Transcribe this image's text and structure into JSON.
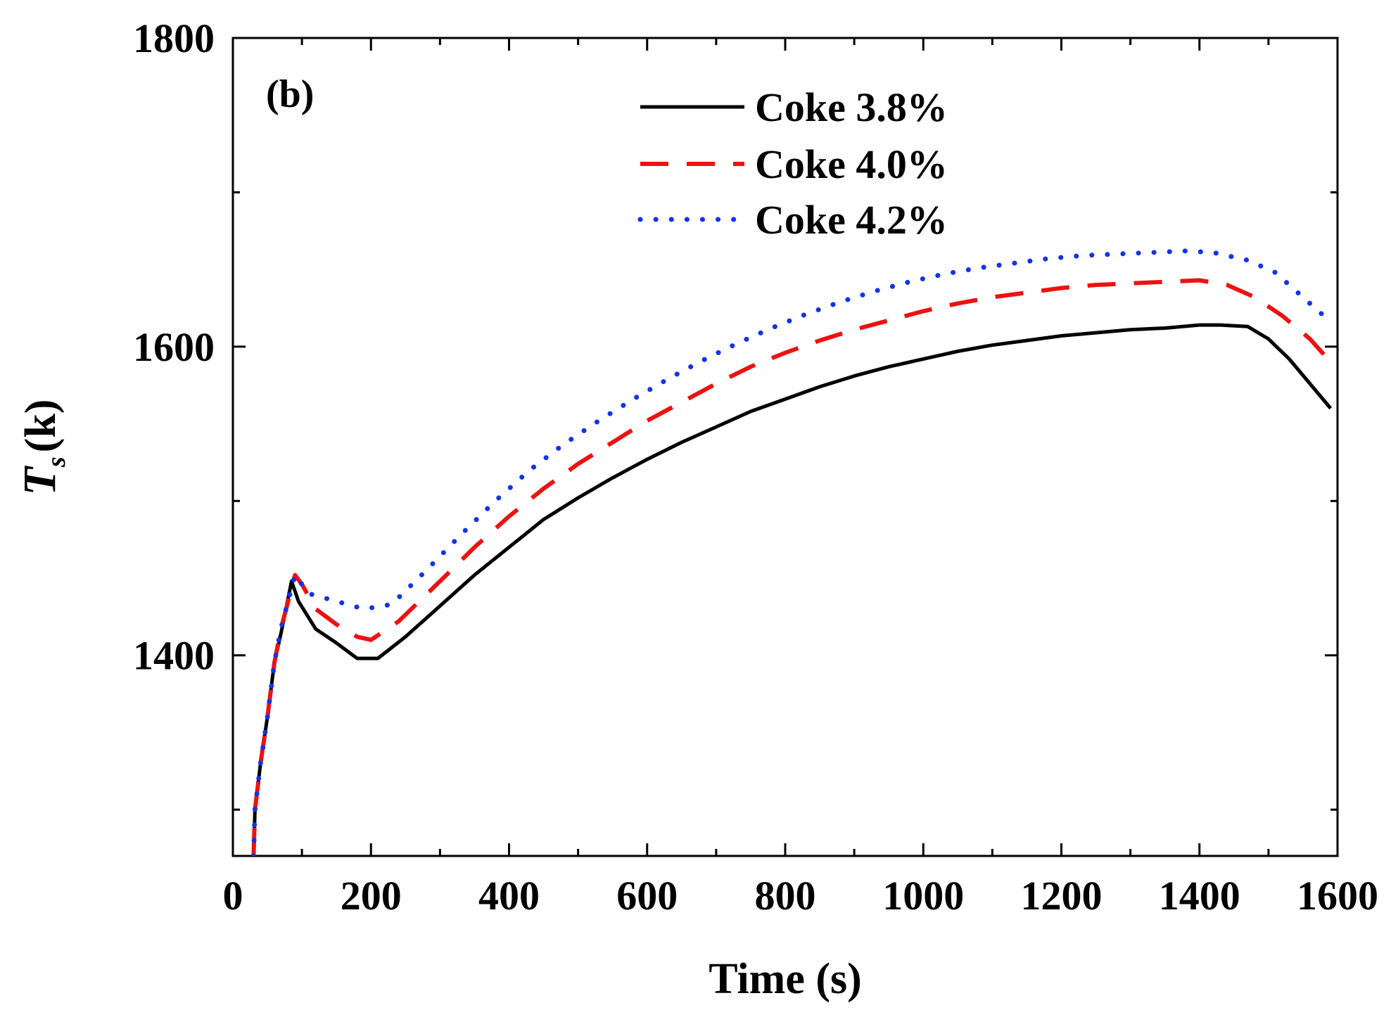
{
  "chart_data": {
    "type": "line",
    "panel_label": "(b)",
    "xlabel": "Time (s)",
    "ylabel_main": "T",
    "ylabel_sub": "s",
    "ylabel_unit": "(k)",
    "xlim": [
      0,
      1600
    ],
    "ylim": [
      1270,
      1800
    ],
    "x_ticks": [
      0,
      200,
      400,
      600,
      800,
      1000,
      1200,
      1400,
      1600
    ],
    "x_tick_labels": [
      "0",
      "200",
      "400",
      "600",
      "800",
      "1000",
      "1200",
      "1400",
      "1600"
    ],
    "y_ticks": [
      1400,
      1600,
      1800
    ],
    "y_tick_labels": [
      "1400",
      "1600",
      "1800"
    ],
    "y_minor_ticks": [
      1300,
      1500,
      1700
    ],
    "legend_position": "top-center",
    "series": [
      {
        "name": "Coke 3.8%",
        "color": "#000000",
        "style": "solid",
        "points": [
          [
            30,
            1270
          ],
          [
            32,
            1300
          ],
          [
            40,
            1330
          ],
          [
            50,
            1360
          ],
          [
            60,
            1395
          ],
          [
            70,
            1415
          ],
          [
            85,
            1448
          ],
          [
            95,
            1435
          ],
          [
            120,
            1417
          ],
          [
            150,
            1408
          ],
          [
            180,
            1398
          ],
          [
            210,
            1398
          ],
          [
            250,
            1412
          ],
          [
            300,
            1432
          ],
          [
            350,
            1452
          ],
          [
            400,
            1470
          ],
          [
            450,
            1488
          ],
          [
            500,
            1502
          ],
          [
            550,
            1515
          ],
          [
            600,
            1527
          ],
          [
            650,
            1538
          ],
          [
            700,
            1548
          ],
          [
            750,
            1558
          ],
          [
            800,
            1566
          ],
          [
            850,
            1574
          ],
          [
            900,
            1581
          ],
          [
            950,
            1587
          ],
          [
            1000,
            1592
          ],
          [
            1050,
            1597
          ],
          [
            1100,
            1601
          ],
          [
            1150,
            1604
          ],
          [
            1200,
            1607
          ],
          [
            1250,
            1609
          ],
          [
            1300,
            1611
          ],
          [
            1350,
            1612
          ],
          [
            1400,
            1614
          ],
          [
            1430,
            1614
          ],
          [
            1470,
            1613
          ],
          [
            1500,
            1605
          ],
          [
            1530,
            1592
          ],
          [
            1560,
            1576
          ],
          [
            1590,
            1560
          ]
        ]
      },
      {
        "name": "Coke 4.0%",
        "color": "#ee1111",
        "style": "dashed",
        "points": [
          [
            30,
            1270
          ],
          [
            32,
            1300
          ],
          [
            40,
            1330
          ],
          [
            50,
            1360
          ],
          [
            60,
            1395
          ],
          [
            70,
            1418
          ],
          [
            90,
            1452
          ],
          [
            100,
            1446
          ],
          [
            120,
            1430
          ],
          [
            150,
            1420
          ],
          [
            180,
            1412
          ],
          [
            200,
            1410
          ],
          [
            240,
            1422
          ],
          [
            300,
            1448
          ],
          [
            350,
            1470
          ],
          [
            400,
            1490
          ],
          [
            450,
            1508
          ],
          [
            500,
            1524
          ],
          [
            550,
            1538
          ],
          [
            600,
            1552
          ],
          [
            650,
            1564
          ],
          [
            700,
            1576
          ],
          [
            750,
            1587
          ],
          [
            800,
            1596
          ],
          [
            850,
            1604
          ],
          [
            900,
            1611
          ],
          [
            950,
            1617
          ],
          [
            1000,
            1623
          ],
          [
            1050,
            1628
          ],
          [
            1100,
            1632
          ],
          [
            1150,
            1635
          ],
          [
            1200,
            1638
          ],
          [
            1250,
            1640
          ],
          [
            1300,
            1641
          ],
          [
            1350,
            1642
          ],
          [
            1400,
            1643
          ],
          [
            1440,
            1640
          ],
          [
            1480,
            1632
          ],
          [
            1520,
            1620
          ],
          [
            1560,
            1605
          ],
          [
            1590,
            1590
          ]
        ]
      },
      {
        "name": "Coke 4.2%",
        "color": "#1133ee",
        "style": "dotted",
        "points": [
          [
            30,
            1270
          ],
          [
            32,
            1300
          ],
          [
            40,
            1330
          ],
          [
            50,
            1360
          ],
          [
            60,
            1395
          ],
          [
            70,
            1418
          ],
          [
            90,
            1452
          ],
          [
            110,
            1440
          ],
          [
            150,
            1435
          ],
          [
            190,
            1430
          ],
          [
            230,
            1433
          ],
          [
            280,
            1455
          ],
          [
            330,
            1478
          ],
          [
            380,
            1500
          ],
          [
            430,
            1520
          ],
          [
            480,
            1537
          ],
          [
            530,
            1552
          ],
          [
            580,
            1566
          ],
          [
            630,
            1579
          ],
          [
            680,
            1591
          ],
          [
            730,
            1602
          ],
          [
            780,
            1612
          ],
          [
            830,
            1621
          ],
          [
            880,
            1629
          ],
          [
            930,
            1636
          ],
          [
            980,
            1642
          ],
          [
            1030,
            1647
          ],
          [
            1080,
            1651
          ],
          [
            1130,
            1654
          ],
          [
            1180,
            1657
          ],
          [
            1230,
            1659
          ],
          [
            1280,
            1660
          ],
          [
            1330,
            1661
          ],
          [
            1380,
            1662
          ],
          [
            1420,
            1661
          ],
          [
            1470,
            1656
          ],
          [
            1510,
            1648
          ],
          [
            1550,
            1632
          ],
          [
            1580,
            1620
          ]
        ]
      }
    ]
  }
}
